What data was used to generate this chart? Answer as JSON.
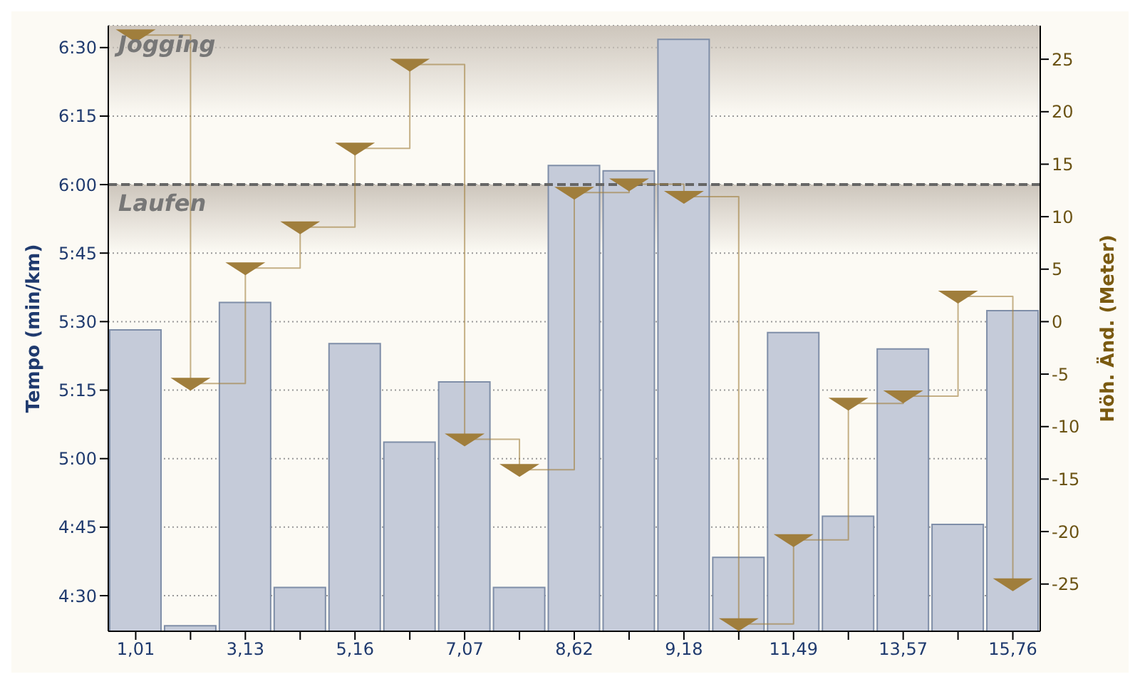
{
  "chart_data": {
    "type": "bar",
    "ylabel": "Tempo (min/km)",
    "y2label": "Höh. Änd. (Meter)",
    "categories": [
      "1,01",
      null,
      "3,13",
      null,
      "5,16",
      null,
      "7,07",
      null,
      "8,62",
      null,
      "9,18",
      null,
      "11,49",
      null,
      "13,57",
      null,
      "15,76"
    ],
    "series": [
      {
        "color": "#c5cbd9",
        "values": [
          5.47,
          4.39,
          5.57,
          4.53,
          5.42,
          5.06,
          5.28,
          4.53,
          6.07,
          6.05,
          6.53,
          4.64,
          5.46,
          4.79,
          5.4,
          4.76,
          5.54
        ]
      },
      {
        "type": "step",
        "axis": "y2",
        "color": "#a07e3c",
        "marker": "triangle",
        "values": [
          27.3,
          -5.9,
          5.1,
          9,
          16.5,
          24.5,
          -11.2,
          -14.1,
          12.3,
          13.1,
          11.9,
          -28.8,
          -20.8,
          -7.8,
          -7.1,
          2.4,
          -25
        ]
      }
    ],
    "ylim": [
      4.37,
      6.58
    ],
    "yticks": [
      {
        "value": 4.5,
        "label": "4:30"
      },
      {
        "value": 4.75,
        "label": "4:45"
      },
      {
        "value": 5,
        "label": "5:00"
      },
      {
        "value": 5.25,
        "label": "5:15"
      },
      {
        "value": 5.5,
        "label": "5:30"
      },
      {
        "value": 5.75,
        "label": "5:45"
      },
      {
        "value": 6,
        "label": "6:00"
      },
      {
        "value": 6.25,
        "label": "6:15"
      },
      {
        "value": 6.5,
        "label": "6:30"
      }
    ],
    "y2lim": [
      -29.5,
      28.2
    ],
    "y2ticks": [
      -25,
      -20,
      -15,
      -10,
      -5,
      0,
      5,
      10,
      15,
      20,
      25
    ],
    "ref_lines": [
      {
        "axis": "y",
        "value": 6,
        "color": "#666666",
        "line_style": "dashed"
      }
    ],
    "bands": [
      {
        "axis": "y",
        "from": 6.25,
        "to": 6.58,
        "label": "Jogging",
        "color": "#c8c0b6"
      },
      {
        "axis": "y",
        "from": 5.75,
        "to": 6,
        "label": "Laufen",
        "color": "#c8c0b6"
      }
    ],
    "grid": "y",
    "legend": false
  }
}
